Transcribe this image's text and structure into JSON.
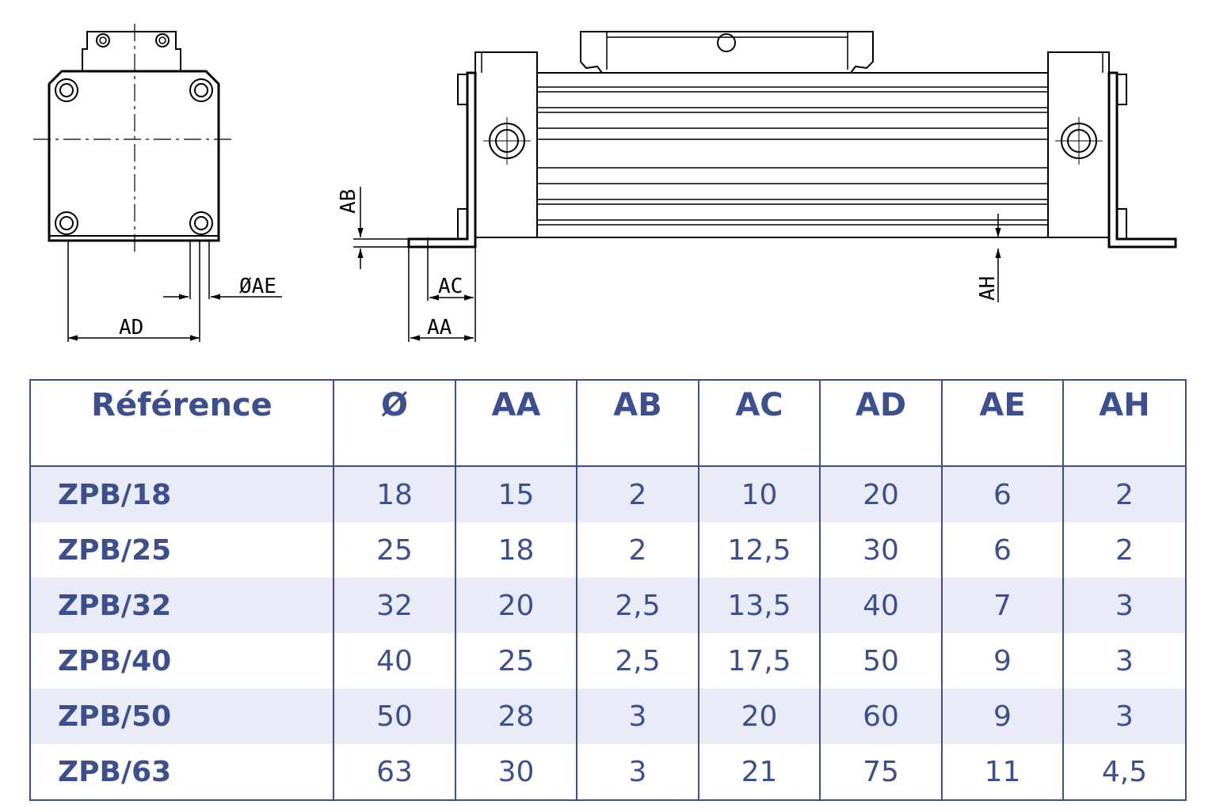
{
  "drawing": {
    "labels": {
      "ab": "AB",
      "ac": "AC",
      "aa": "AA",
      "ad": "AD",
      "ae": "ØAE",
      "ah": "AH"
    }
  },
  "table": {
    "headers": [
      "Référence",
      "Ø",
      "AA",
      "AB",
      "AC",
      "AD",
      "AE",
      "AH"
    ],
    "rows": [
      [
        "ZPB/18",
        "18",
        "15",
        "2",
        "10",
        "20",
        "6",
        "2"
      ],
      [
        "ZPB/25",
        "25",
        "18",
        "2",
        "12,5",
        "30",
        "6",
        "2"
      ],
      [
        "ZPB/32",
        "32",
        "20",
        "2,5",
        "13,5",
        "40",
        "7",
        "3"
      ],
      [
        "ZPB/40",
        "40",
        "25",
        "2,5",
        "17,5",
        "50",
        "9",
        "3"
      ],
      [
        "ZPB/50",
        "50",
        "28",
        "3",
        "20",
        "60",
        "9",
        "3"
      ],
      [
        "ZPB/63",
        "63",
        "30",
        "3",
        "21",
        "75",
        "11",
        "4,5"
      ]
    ]
  },
  "colors": {
    "accent": "#3d4f8c",
    "row_shade": "#e9ecf6",
    "line": "#000000"
  }
}
